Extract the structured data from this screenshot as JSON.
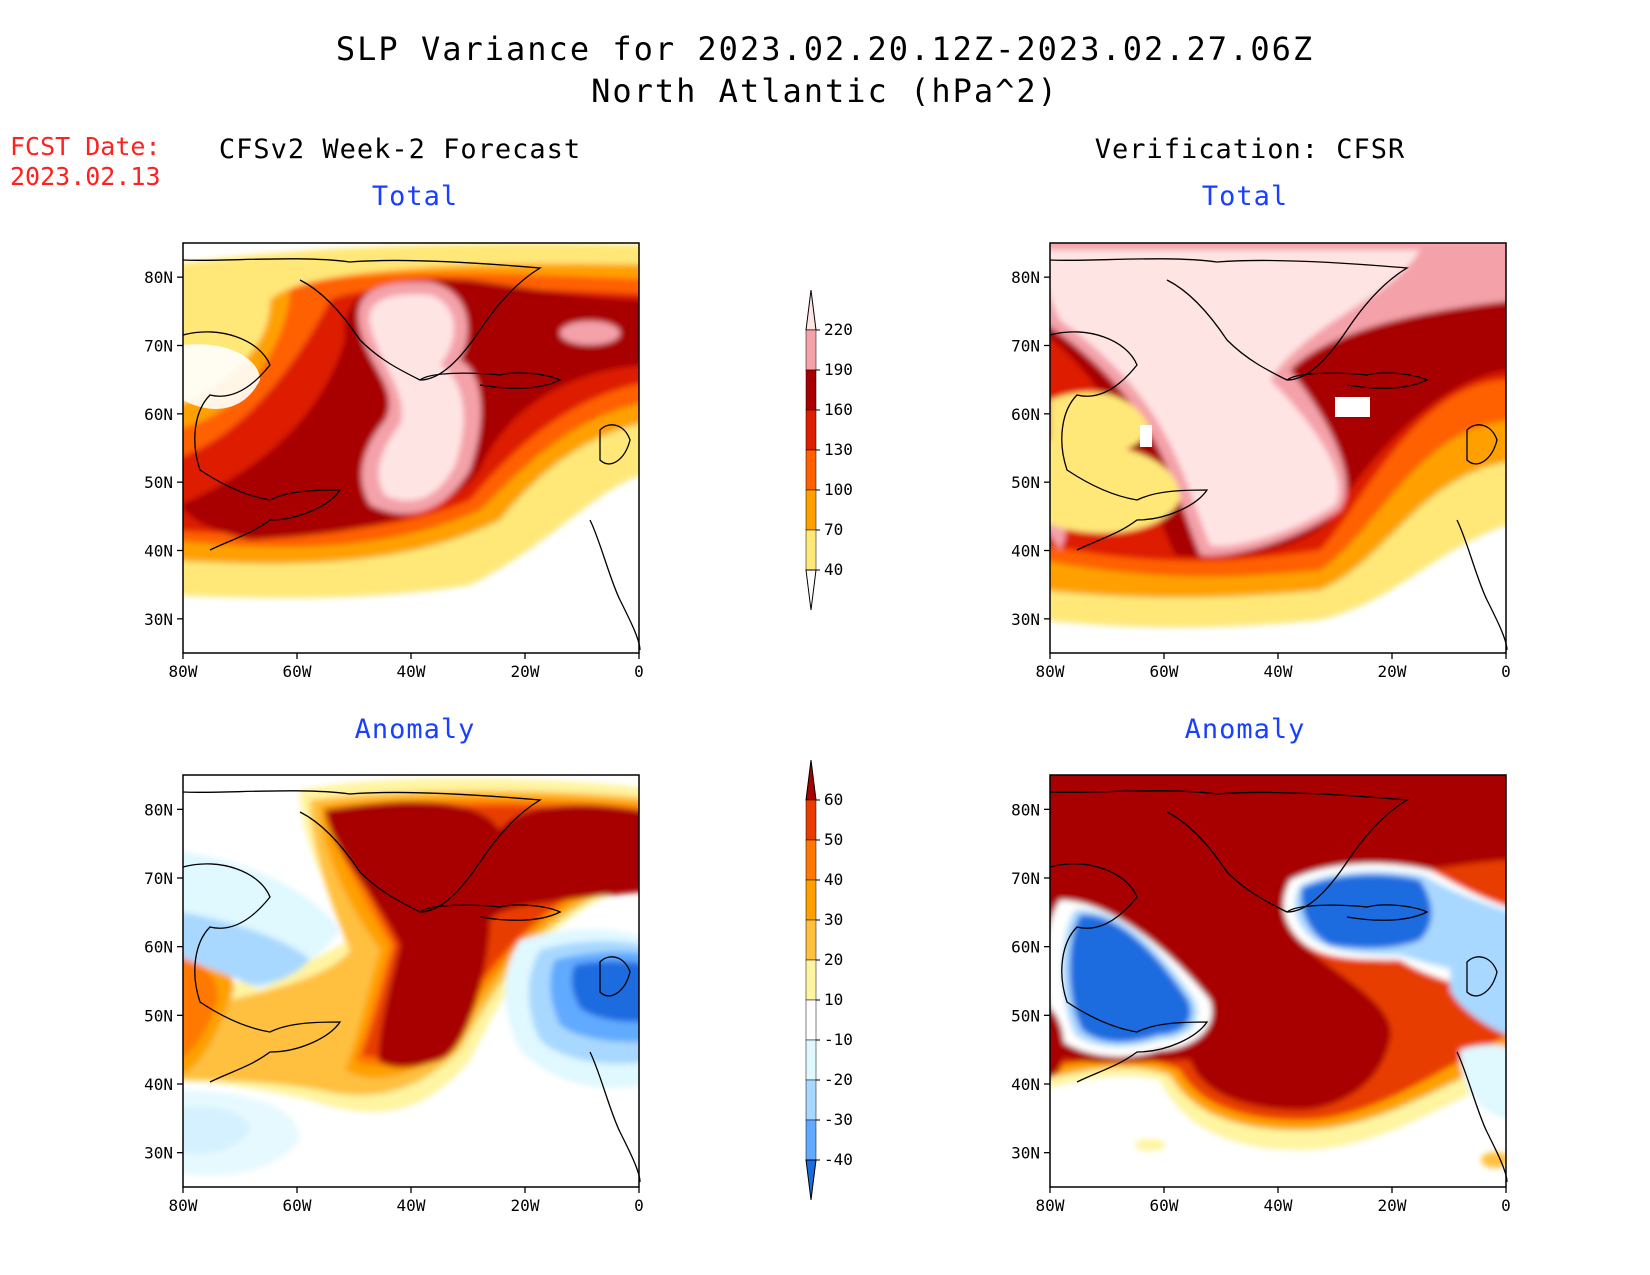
{
  "title": {
    "line1": "SLP Variance for 2023.02.20.12Z-2023.02.27.06Z",
    "line2": "North Atlantic (hPa^2)"
  },
  "fcst_date": {
    "label": "FCST Date:",
    "value": "2023.02.13"
  },
  "columns": {
    "left": "CFSv2 Week-2 Forecast",
    "right": "Verification: CFSR"
  },
  "panel_titles": {
    "total": "Total",
    "anomaly": "Anomaly"
  },
  "axes": {
    "lat_labels": [
      "80N",
      "70N",
      "60N",
      "50N",
      "40N",
      "30N"
    ],
    "lon_labels": [
      "80W",
      "60W",
      "40W",
      "20W",
      "0"
    ]
  },
  "colorbars": {
    "total": {
      "levels": [
        "220",
        "190",
        "160",
        "130",
        "100",
        "70",
        "40"
      ],
      "colors": [
        "#ffe4e4",
        "#f4a1a9",
        "#a80000",
        "#dd1e00",
        "#ff6000",
        "#ffa000",
        "#ffe878",
        "#ffffff"
      ]
    },
    "anomaly": {
      "levels": [
        "60",
        "50",
        "40",
        "30",
        "20",
        "10",
        "-10",
        "-20",
        "-30",
        "-40"
      ],
      "colors": [
        "#a80000",
        "#e83c00",
        "#ff7800",
        "#ffa000",
        "#ffc040",
        "#fff4a0",
        "#ffffff",
        "#e0f8ff",
        "#a8d8ff",
        "#60aaff",
        "#1a6ce0"
      ]
    }
  },
  "chart_data": {
    "type": "heatmap",
    "variable": "SLP Variance (hPa^2)",
    "region": "North Atlantic",
    "lon_range": [
      -80,
      0
    ],
    "lat_range": [
      25,
      85
    ],
    "panels": [
      {
        "name": "CFSv2 Week-2 Forecast Total",
        "max_class": "220+",
        "max_location": "near 45W 55N and 40W 75N"
      },
      {
        "name": "Verification CFSR Total",
        "max_class": "220+",
        "max_location": "Greenland to 45W 42N"
      },
      {
        "name": "CFSv2 Week-2 Forecast Anomaly",
        "max_class": "60+",
        "min_class": "-30 to -40",
        "min_location": "near 10W 52N"
      },
      {
        "name": "Verification CFSR Anomaly",
        "max_class": "60+",
        "min_class": "-40",
        "min_location": "60W 55N and 20W 65N"
      }
    ]
  }
}
